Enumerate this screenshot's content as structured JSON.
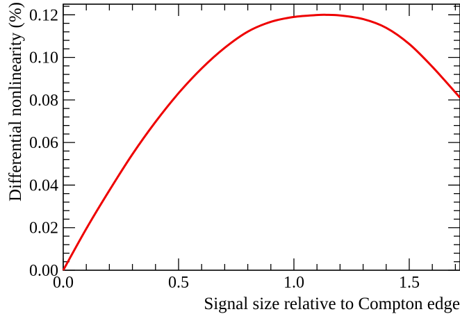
{
  "chart_data": {
    "type": "line",
    "title": "",
    "xlabel": "Signal size relative to Compton edge",
    "ylabel": "Differential nonlinearity  (%)",
    "xlim": [
      0.0,
      1.72
    ],
    "ylim": [
      0.0,
      0.125
    ],
    "grid": false,
    "x_ticks": [
      0.0,
      0.5,
      1.0,
      1.5
    ],
    "x_tick_labels": [
      "0.0",
      "0.5",
      "1.0",
      "1.5"
    ],
    "y_ticks": [
      0.0,
      0.02,
      0.04,
      0.06,
      0.08,
      0.1,
      0.12
    ],
    "y_tick_labels": [
      "0.00",
      "0.02",
      "0.04",
      "0.06",
      "0.08",
      "0.10",
      "0.12"
    ],
    "series": [
      {
        "color": "#ee0000",
        "x": [
          0.0,
          0.1,
          0.2,
          0.3,
          0.4,
          0.5,
          0.6,
          0.7,
          0.8,
          0.9,
          1.0,
          1.1,
          1.14,
          1.2,
          1.3,
          1.4,
          1.5,
          1.6,
          1.72
        ],
        "y": [
          0.0,
          0.0195,
          0.0375,
          0.0545,
          0.0697,
          0.0832,
          0.0948,
          0.1045,
          0.1121,
          0.1167,
          0.119,
          0.1199,
          0.12,
          0.1197,
          0.118,
          0.1139,
          0.1063,
          0.0956,
          0.0811
        ]
      }
    ]
  }
}
